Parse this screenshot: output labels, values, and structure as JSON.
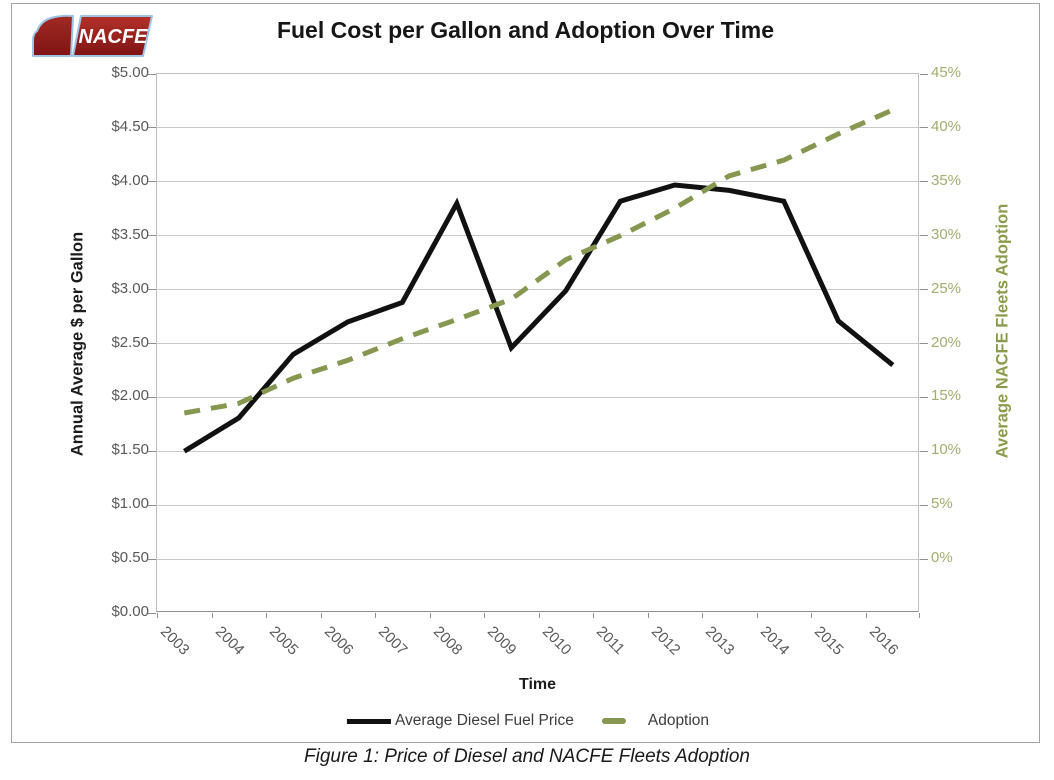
{
  "logo": {
    "text": "NACFE"
  },
  "title": "Fuel Cost per Gallon and Adoption Over Time",
  "axes": {
    "left": {
      "title": "Annual Average $ per Gallon",
      "ticks": [
        "$5.00",
        "$4.50",
        "$4.00",
        "$3.50",
        "$3.00",
        "$2.50",
        "$2.00",
        "$1.50",
        "$1.00",
        "$0.50",
        "$0.00"
      ]
    },
    "right": {
      "title": "Average NACFE Fleets Adoption",
      "ticks": [
        "45%",
        "40%",
        "35%",
        "30%",
        "25%",
        "20%",
        "15%",
        "10%",
        "5%",
        "0%"
      ]
    },
    "x": {
      "title": "Time",
      "labels": [
        "2003",
        "2004",
        "2005",
        "2006",
        "2007",
        "2008",
        "2009",
        "2010",
        "2011",
        "2012",
        "2013",
        "2014",
        "2015",
        "2016"
      ]
    }
  },
  "legend": [
    {
      "label": "Average Diesel Fuel Price",
      "style": "solid",
      "color": "#111111"
    },
    {
      "label": "Adoption",
      "style": "dashed",
      "color": "#869750"
    }
  ],
  "caption": "Figure 1: Price of Diesel and NACFE Fleets Adoption",
  "chart_data": {
    "type": "line",
    "title": "Fuel Cost per Gallon and Adoption Over Time",
    "categories": [
      "2003",
      "2004",
      "2005",
      "2006",
      "2007",
      "2008",
      "2009",
      "2010",
      "2011",
      "2012",
      "2013",
      "2014",
      "2015",
      "2016"
    ],
    "series": [
      {
        "name": "Average Diesel Fuel Price",
        "axis": "left",
        "style": "solid",
        "color": "#111111",
        "values": [
          1.5,
          1.81,
          2.4,
          2.7,
          2.88,
          3.8,
          2.46,
          2.99,
          3.82,
          3.97,
          3.92,
          3.82,
          2.71,
          2.3
        ]
      },
      {
        "name": "Adoption",
        "axis": "right",
        "style": "dashed",
        "color": "#869750",
        "values": [
          16.7,
          17.5,
          19.6,
          21.1,
          22.9,
          24.5,
          26.2,
          29.5,
          31.5,
          33.8,
          36.5,
          37.8,
          40.0,
          42.0
        ]
      }
    ],
    "left_axis": {
      "label": "Annual Average $ per Gallon",
      "min": 0,
      "max": 5,
      "step": 0.5,
      "format": "$0.00"
    },
    "right_axis": {
      "label": "Average NACFE Fleets Adoption",
      "min": 0,
      "max": 45,
      "step": 5,
      "format": "0%"
    },
    "xlabel": "Time",
    "grid": true,
    "legend_position": "bottom"
  }
}
